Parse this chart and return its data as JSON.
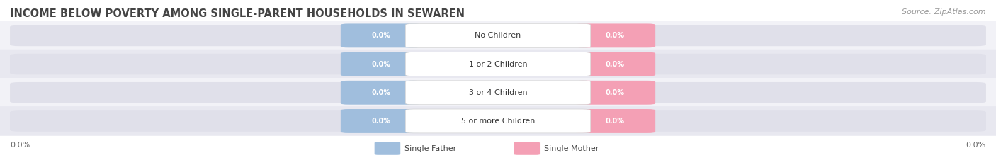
{
  "title": "INCOME BELOW POVERTY AMONG SINGLE-PARENT HOUSEHOLDS IN SEWAREN",
  "source": "Source: ZipAtlas.com",
  "categories": [
    "No Children",
    "1 or 2 Children",
    "3 or 4 Children",
    "5 or more Children"
  ],
  "father_values": [
    "0.0%",
    "0.0%",
    "0.0%",
    "0.0%"
  ],
  "mother_values": [
    "0.0%",
    "0.0%",
    "0.0%",
    "0.0%"
  ],
  "father_color": "#a0bedd",
  "mother_color": "#f4a0b5",
  "title_fontsize": 10.5,
  "source_fontsize": 8,
  "background_color": "#ffffff",
  "row_colors": [
    "#f2f2f7",
    "#e8e8f0"
  ],
  "axis_label_left": "0.0%",
  "axis_label_right": "0.0%",
  "legend_father": "Single Father",
  "legend_mother": "Single Mother"
}
